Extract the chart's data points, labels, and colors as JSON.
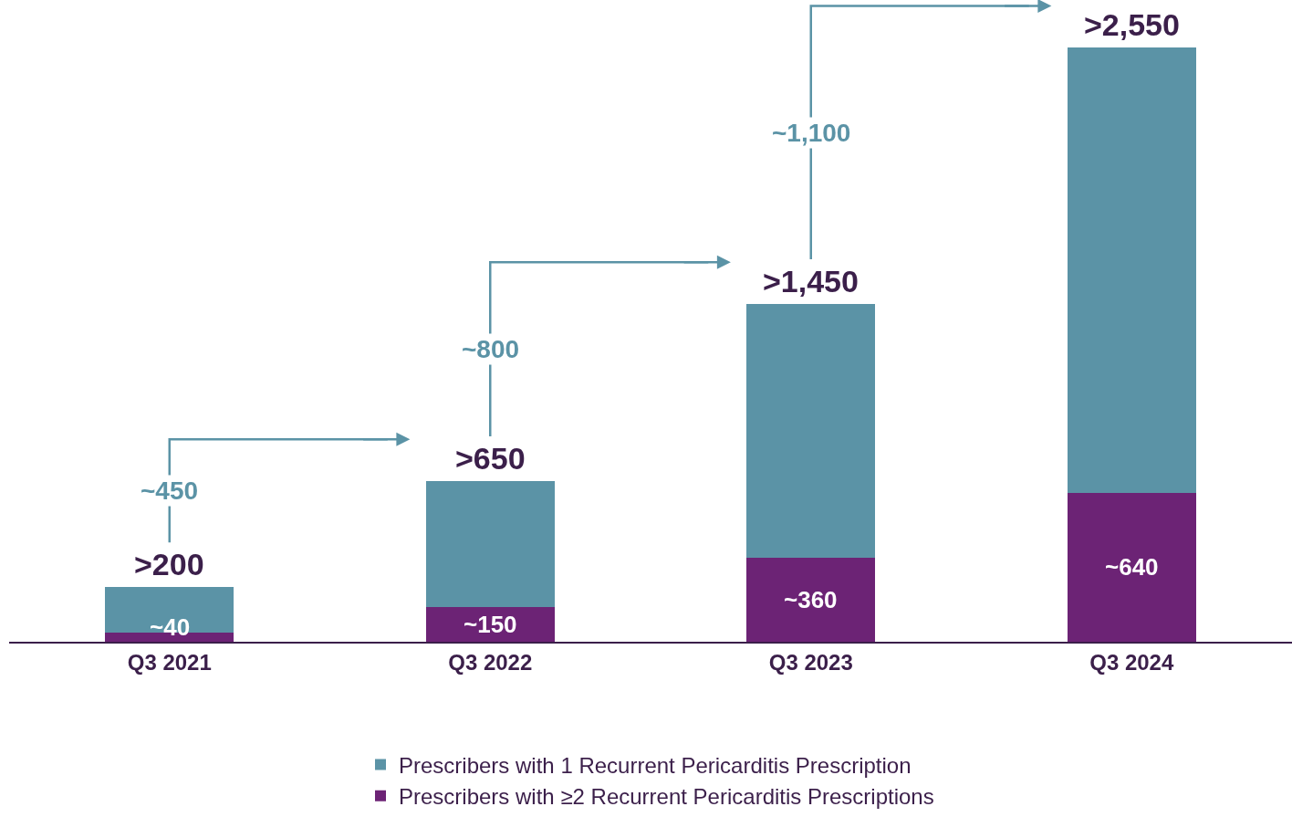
{
  "chart_data": {
    "type": "bar",
    "stacked": true,
    "categories": [
      "Q3 2021",
      "Q3 2022",
      "Q3 2023",
      "Q3 2024"
    ],
    "series": [
      {
        "name": "Prescribers with ≥2 Recurrent Pericarditis Prescriptions",
        "color": "#6c2375",
        "values": [
          40,
          150,
          360,
          640
        ],
        "value_labels": [
          "~40",
          "~150",
          "~360",
          "~640"
        ]
      },
      {
        "name": "Prescribers with 1 Recurrent Pericarditis Prescription",
        "color": "#5b93a6",
        "values": [
          195,
          540,
          1090,
          1910
        ]
      }
    ],
    "totals": [
      ">200",
      ">650",
      ">1,450",
      ">2,550"
    ],
    "annotations": [
      "~450",
      "~800",
      "~1,100"
    ],
    "legend": "bottom"
  }
}
